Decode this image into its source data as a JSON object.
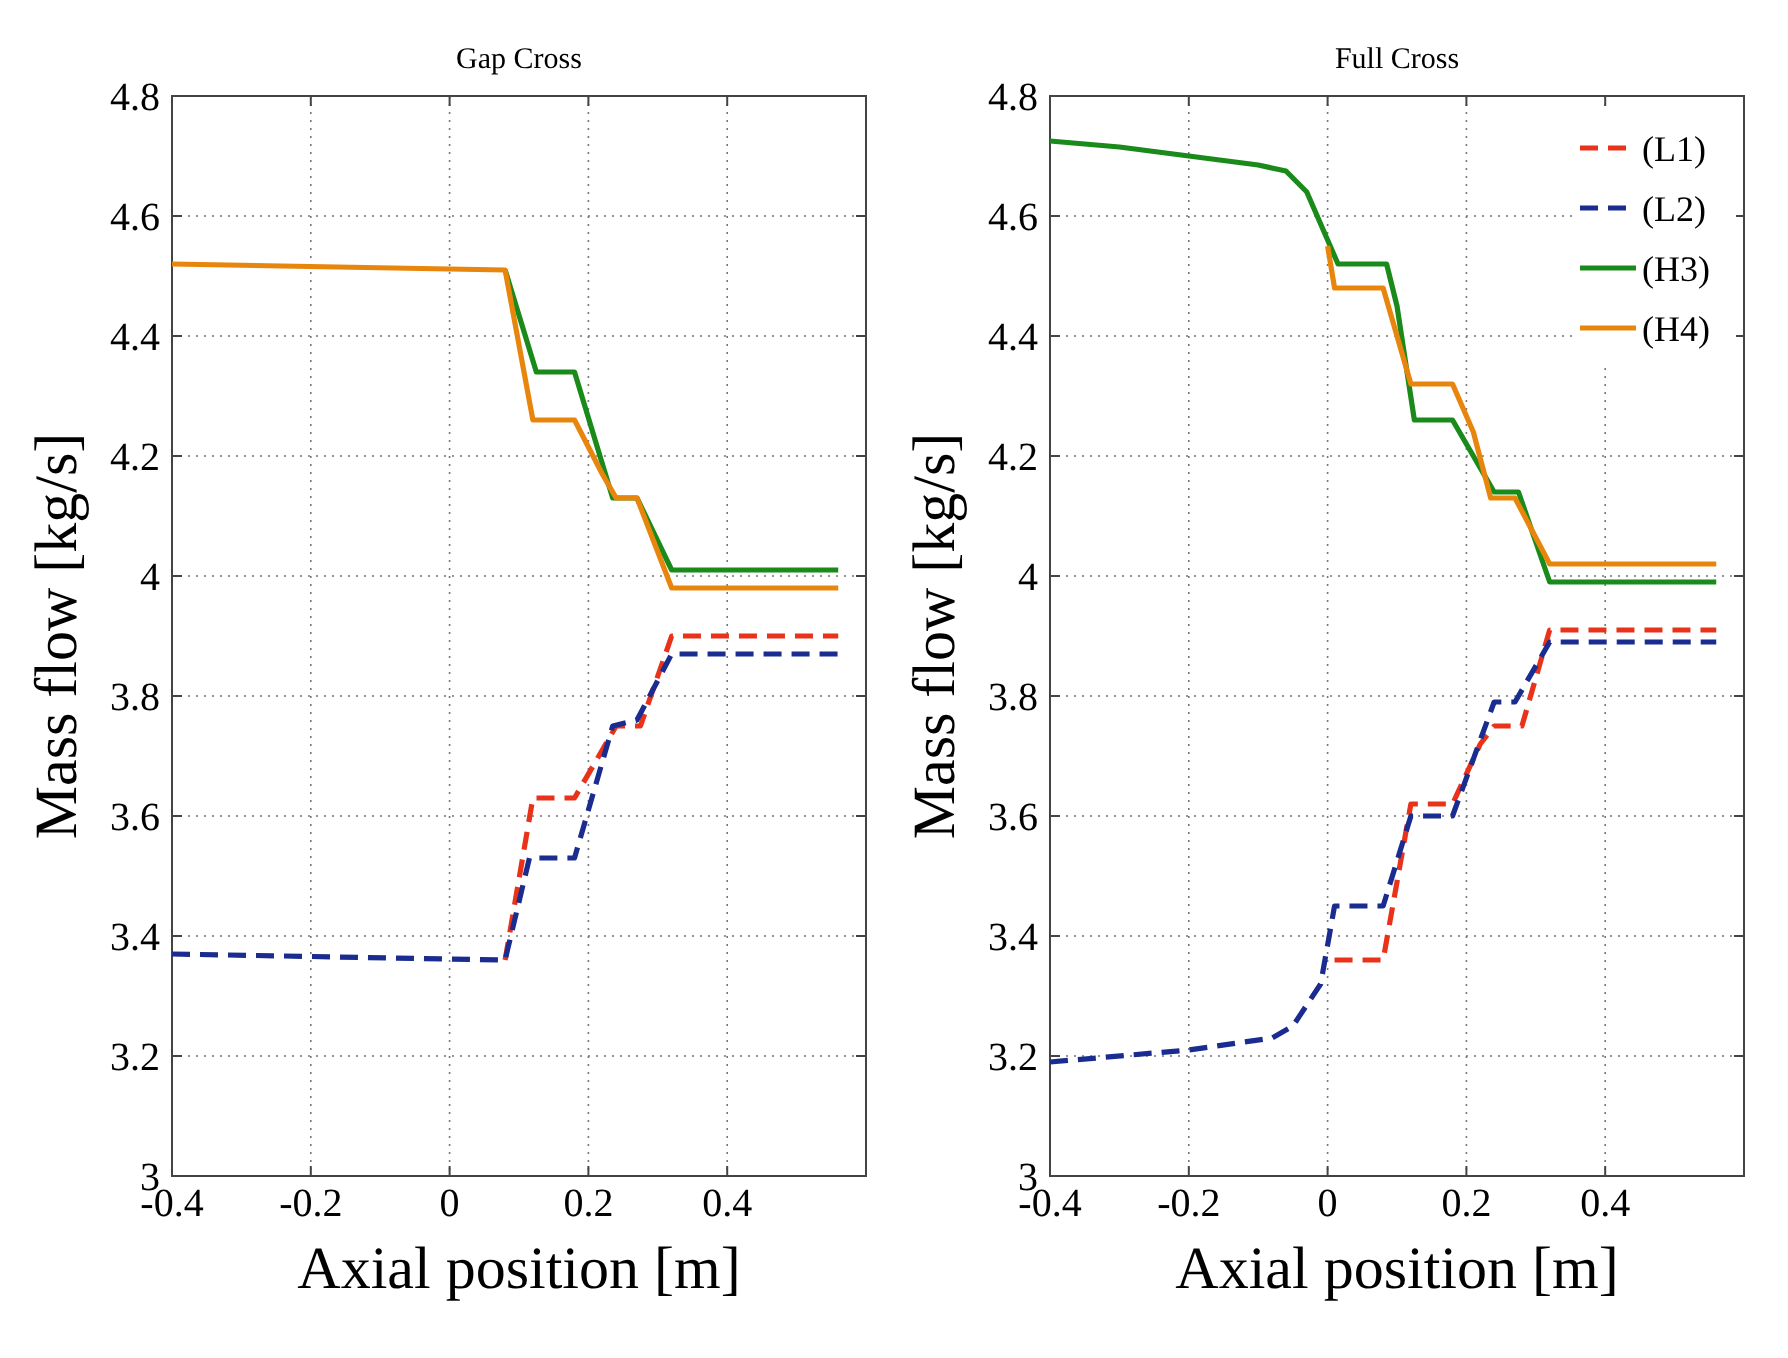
{
  "chart_data": [
    {
      "type": "line",
      "title": "Gap Cross",
      "xlabel": "Axial position [m]",
      "ylabel": "Mass flow [kg/s]",
      "xlim": [
        -0.4,
        0.6
      ],
      "ylim": [
        3,
        4.8
      ],
      "xticks": [
        -0.4,
        -0.2,
        0,
        0.2,
        0.4
      ],
      "yticks": [
        3,
        3.2,
        3.4,
        3.6,
        3.8,
        4,
        4.2,
        4.4,
        4.6,
        4.8
      ],
      "grid": true,
      "legend": false,
      "marker": "none",
      "series": [
        {
          "color": "#e8331a",
          "line_style": "dashed",
          "x": [
            0.08,
            0.12,
            0.18,
            0.24,
            0.275,
            0.32,
            0.56
          ],
          "values": [
            3.36,
            3.63,
            3.63,
            3.75,
            3.75,
            3.9,
            3.9
          ]
        },
        {
          "color": "#1a2c8f",
          "line_style": "dashed",
          "x": [
            -0.4,
            0.08,
            0.115,
            0.18,
            0.235,
            0.27,
            0.32,
            0.56
          ],
          "values": [
            3.37,
            3.36,
            3.53,
            3.53,
            3.75,
            3.76,
            3.87,
            3.87
          ]
        },
        {
          "color": "#1a8a1a",
          "line_style": "solid",
          "x": [
            0.08,
            0.125,
            0.18,
            0.235,
            0.27,
            0.32,
            0.56
          ],
          "values": [
            4.51,
            4.34,
            4.34,
            4.13,
            4.13,
            4.01,
            4.01
          ]
        },
        {
          "color": "#e8850c",
          "line_style": "solid",
          "x": [
            -0.4,
            0.08,
            0.12,
            0.18,
            0.22,
            0.24,
            0.27,
            0.32,
            0.56
          ],
          "values": [
            4.52,
            4.51,
            4.26,
            4.26,
            4.17,
            4.13,
            4.13,
            3.98,
            3.98
          ]
        }
      ]
    },
    {
      "type": "line",
      "title": "Full Cross",
      "xlabel": "Axial position [m]",
      "ylabel": "Mass flow [kg/s]",
      "xlim": [
        -0.4,
        0.6
      ],
      "ylim": [
        3,
        4.8
      ],
      "xticks": [
        -0.4,
        -0.2,
        0,
        0.2,
        0.4
      ],
      "yticks": [
        3,
        3.2,
        3.4,
        3.6,
        3.8,
        4,
        4.2,
        4.4,
        4.6,
        4.8
      ],
      "grid": true,
      "legend": "top right",
      "marker": "none",
      "series": [
        {
          "name": "(L1)",
          "color": "#e8331a",
          "line_style": "dashed",
          "x": [
            0.01,
            0.08,
            0.12,
            0.18,
            0.22,
            0.24,
            0.28,
            0.32,
            0.56
          ],
          "values": [
            3.36,
            3.36,
            3.62,
            3.62,
            3.72,
            3.75,
            3.75,
            3.91,
            3.91
          ]
        },
        {
          "name": "(L2)",
          "color": "#1a2c8f",
          "line_style": "dashed",
          "x": [
            -0.4,
            -0.2,
            -0.08,
            -0.05,
            -0.01,
            0.01,
            0.08,
            0.12,
            0.18,
            0.24,
            0.27,
            0.32,
            0.56
          ],
          "values": [
            3.19,
            3.21,
            3.23,
            3.25,
            3.32,
            3.45,
            3.45,
            3.6,
            3.6,
            3.79,
            3.79,
            3.89,
            3.89
          ]
        },
        {
          "name": "(H3)",
          "color": "#1a8a1a",
          "line_style": "solid",
          "x": [
            -0.4,
            -0.3,
            -0.2,
            -0.1,
            -0.06,
            -0.03,
            0,
            0.015,
            0.085,
            0.1,
            0.125,
            0.18,
            0.22,
            0.24,
            0.275,
            0.32,
            0.56
          ],
          "values": [
            4.725,
            4.715,
            4.7,
            4.685,
            4.675,
            4.64,
            4.56,
            4.52,
            4.52,
            4.45,
            4.26,
            4.26,
            4.18,
            4.14,
            4.14,
            3.99,
            3.99
          ]
        },
        {
          "name": "(H4)",
          "color": "#e8850c",
          "line_style": "solid",
          "x": [
            0,
            0.01,
            0.08,
            0.12,
            0.18,
            0.21,
            0.235,
            0.27,
            0.32,
            0.56
          ],
          "values": [
            4.55,
            4.48,
            4.48,
            4.32,
            4.32,
            4.24,
            4.13,
            4.13,
            4.02,
            4.02
          ]
        }
      ]
    }
  ]
}
